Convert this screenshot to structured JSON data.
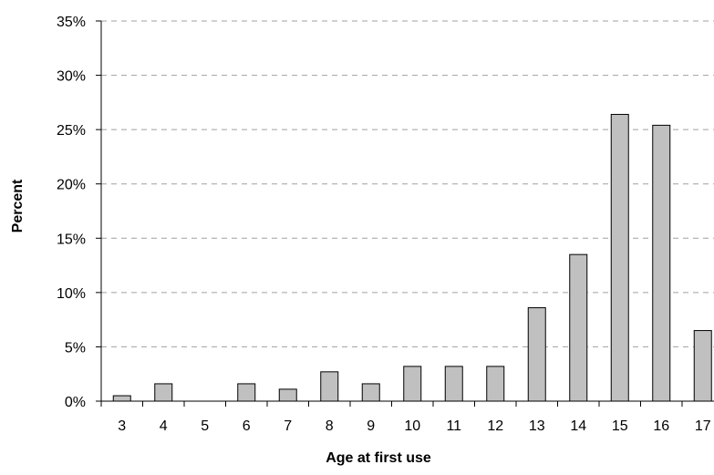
{
  "chart_data": {
    "type": "bar",
    "title": "",
    "xlabel": "Age at first use",
    "ylabel": "Percent",
    "categories": [
      "3",
      "4",
      "5",
      "6",
      "7",
      "8",
      "9",
      "10",
      "11",
      "12",
      "13",
      "14",
      "15",
      "16",
      "17"
    ],
    "values": [
      0.5,
      1.6,
      0,
      1.6,
      1.1,
      2.7,
      1.6,
      3.2,
      3.2,
      3.2,
      8.6,
      13.5,
      26.4,
      25.4,
      6.5
    ],
    "ylim": [
      0,
      35
    ],
    "yticks": [
      "0%",
      "5%",
      "10%",
      "15%",
      "20%",
      "25%",
      "30%",
      "35%"
    ],
    "grid": "horizontal dashed",
    "legend": "none",
    "colors": {
      "bar_fill": "#c0c0c0",
      "bar_stroke": "#000000",
      "grid": "#a0a0a0",
      "axis": "#000000"
    }
  }
}
